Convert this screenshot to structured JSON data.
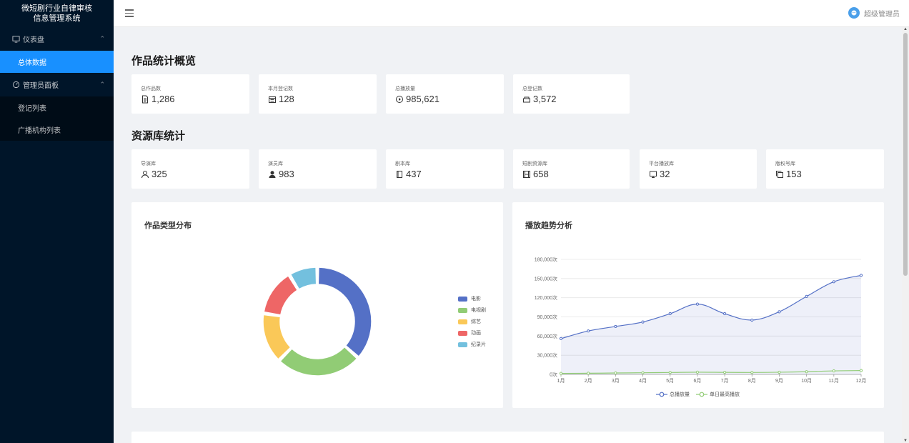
{
  "app": {
    "title_line1": "微短剧行业自律审核",
    "title_line2": "信息管理系统"
  },
  "sidebar": {
    "groups": [
      {
        "label": "仪表盘",
        "icon": "dashboard-icon",
        "items": [
          {
            "label": "总体数据",
            "active": true
          }
        ]
      },
      {
        "label": "管理员面板",
        "icon": "gauge-icon",
        "items": [
          {
            "label": "登记列表"
          },
          {
            "label": "广播机构列表"
          }
        ]
      }
    ]
  },
  "header": {
    "user_name": "超级管理员"
  },
  "overview": {
    "title": "作品统计概览",
    "stats": [
      {
        "label": "总作品数",
        "value": "1,286",
        "icon": "document-icon"
      },
      {
        "label": "本月登记数",
        "value": "128",
        "icon": "calendar-icon"
      },
      {
        "label": "总播放量",
        "value": "985,621",
        "icon": "play-circle-icon"
      },
      {
        "label": "总登记数",
        "value": "3,572",
        "icon": "box-icon"
      }
    ]
  },
  "library": {
    "title": "资源库统计",
    "stats": [
      {
        "label": "导演库",
        "value": "325",
        "icon": "user-icon"
      },
      {
        "label": "演员库",
        "value": "983",
        "icon": "user-filled-icon"
      },
      {
        "label": "剧本库",
        "value": "437",
        "icon": "book-icon"
      },
      {
        "label": "短剧资源库",
        "value": "658",
        "icon": "film-icon"
      },
      {
        "label": "平台播放库",
        "value": "32",
        "icon": "monitor-icon"
      },
      {
        "label": "版权号库",
        "value": "153",
        "icon": "copy-icon"
      }
    ]
  },
  "pie_panel": {
    "title": "作品类型分布"
  },
  "line_panel": {
    "title": "播放趋势分析"
  },
  "chart_data": [
    {
      "type": "pie",
      "title": "作品类型分布",
      "categories": [
        "电影",
        "电视剧",
        "综艺",
        "动画",
        "纪录片"
      ],
      "values": [
        34,
        24,
        14,
        13,
        8
      ],
      "colors": [
        "#5470c6",
        "#91cc75",
        "#fac858",
        "#ee6666",
        "#73c0de"
      ],
      "legend": "right"
    },
    {
      "type": "area",
      "title": "播放趋势分析",
      "categories": [
        "1月",
        "2月",
        "3月",
        "4月",
        "5月",
        "6月",
        "7月",
        "8月",
        "9月",
        "10月",
        "11月",
        "12月"
      ],
      "series": [
        {
          "name": "总播放量",
          "values": [
            56000,
            68000,
            75000,
            82000,
            95000,
            110000,
            95000,
            85000,
            98000,
            122000,
            145000,
            155000
          ],
          "color": "#5470c6"
        },
        {
          "name": "单日最高播放",
          "values": [
            1500,
            1800,
            2200,
            2600,
            3000,
            3500,
            3200,
            3000,
            3400,
            4200,
            5500,
            6000
          ],
          "color": "#91cc75"
        }
      ],
      "yticks": [
        "0次",
        "30,000次",
        "60,000次",
        "90,000次",
        "120,000次",
        "150,000次",
        "180,000次"
      ],
      "ylim": [
        0,
        180000
      ],
      "grid": true,
      "legend": "bottom"
    }
  ]
}
